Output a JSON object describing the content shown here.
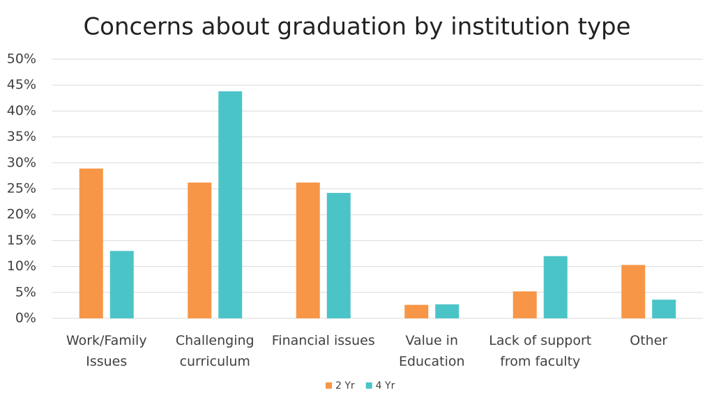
{
  "chart_data": {
    "type": "bar",
    "title": "Concerns about graduation by institution type",
    "categories": [
      "Work/Family Issues",
      "Challenging curriculum",
      "Financial issues",
      "Value in Education",
      "Lack of support from faculty",
      "Other"
    ],
    "series": [
      {
        "name": "2 Yr",
        "color": "#f79646",
        "values": [
          28.9,
          26.2,
          26.2,
          2.6,
          5.2,
          10.3
        ]
      },
      {
        "name": "4 Yr",
        "color": "#4bc4c8",
        "values": [
          13.0,
          43.8,
          24.2,
          2.7,
          12.0,
          3.6
        ]
      }
    ],
    "ylim": [
      0,
      50
    ],
    "yticks": [
      {
        "value": 0,
        "label": "0%"
      },
      {
        "value": 5,
        "label": "5%"
      },
      {
        "value": 10,
        "label": "10%"
      },
      {
        "value": 15,
        "label": "15%"
      },
      {
        "value": 20,
        "label": "20%"
      },
      {
        "value": 25,
        "label": "25%"
      },
      {
        "value": 30,
        "label": "30%"
      },
      {
        "value": 35,
        "label": "35%"
      },
      {
        "value": 40,
        "label": "40%"
      },
      {
        "value": 45,
        "label": "45%"
      },
      {
        "value": 50,
        "label": "50%"
      }
    ],
    "grid": true,
    "legend": "bottom"
  }
}
